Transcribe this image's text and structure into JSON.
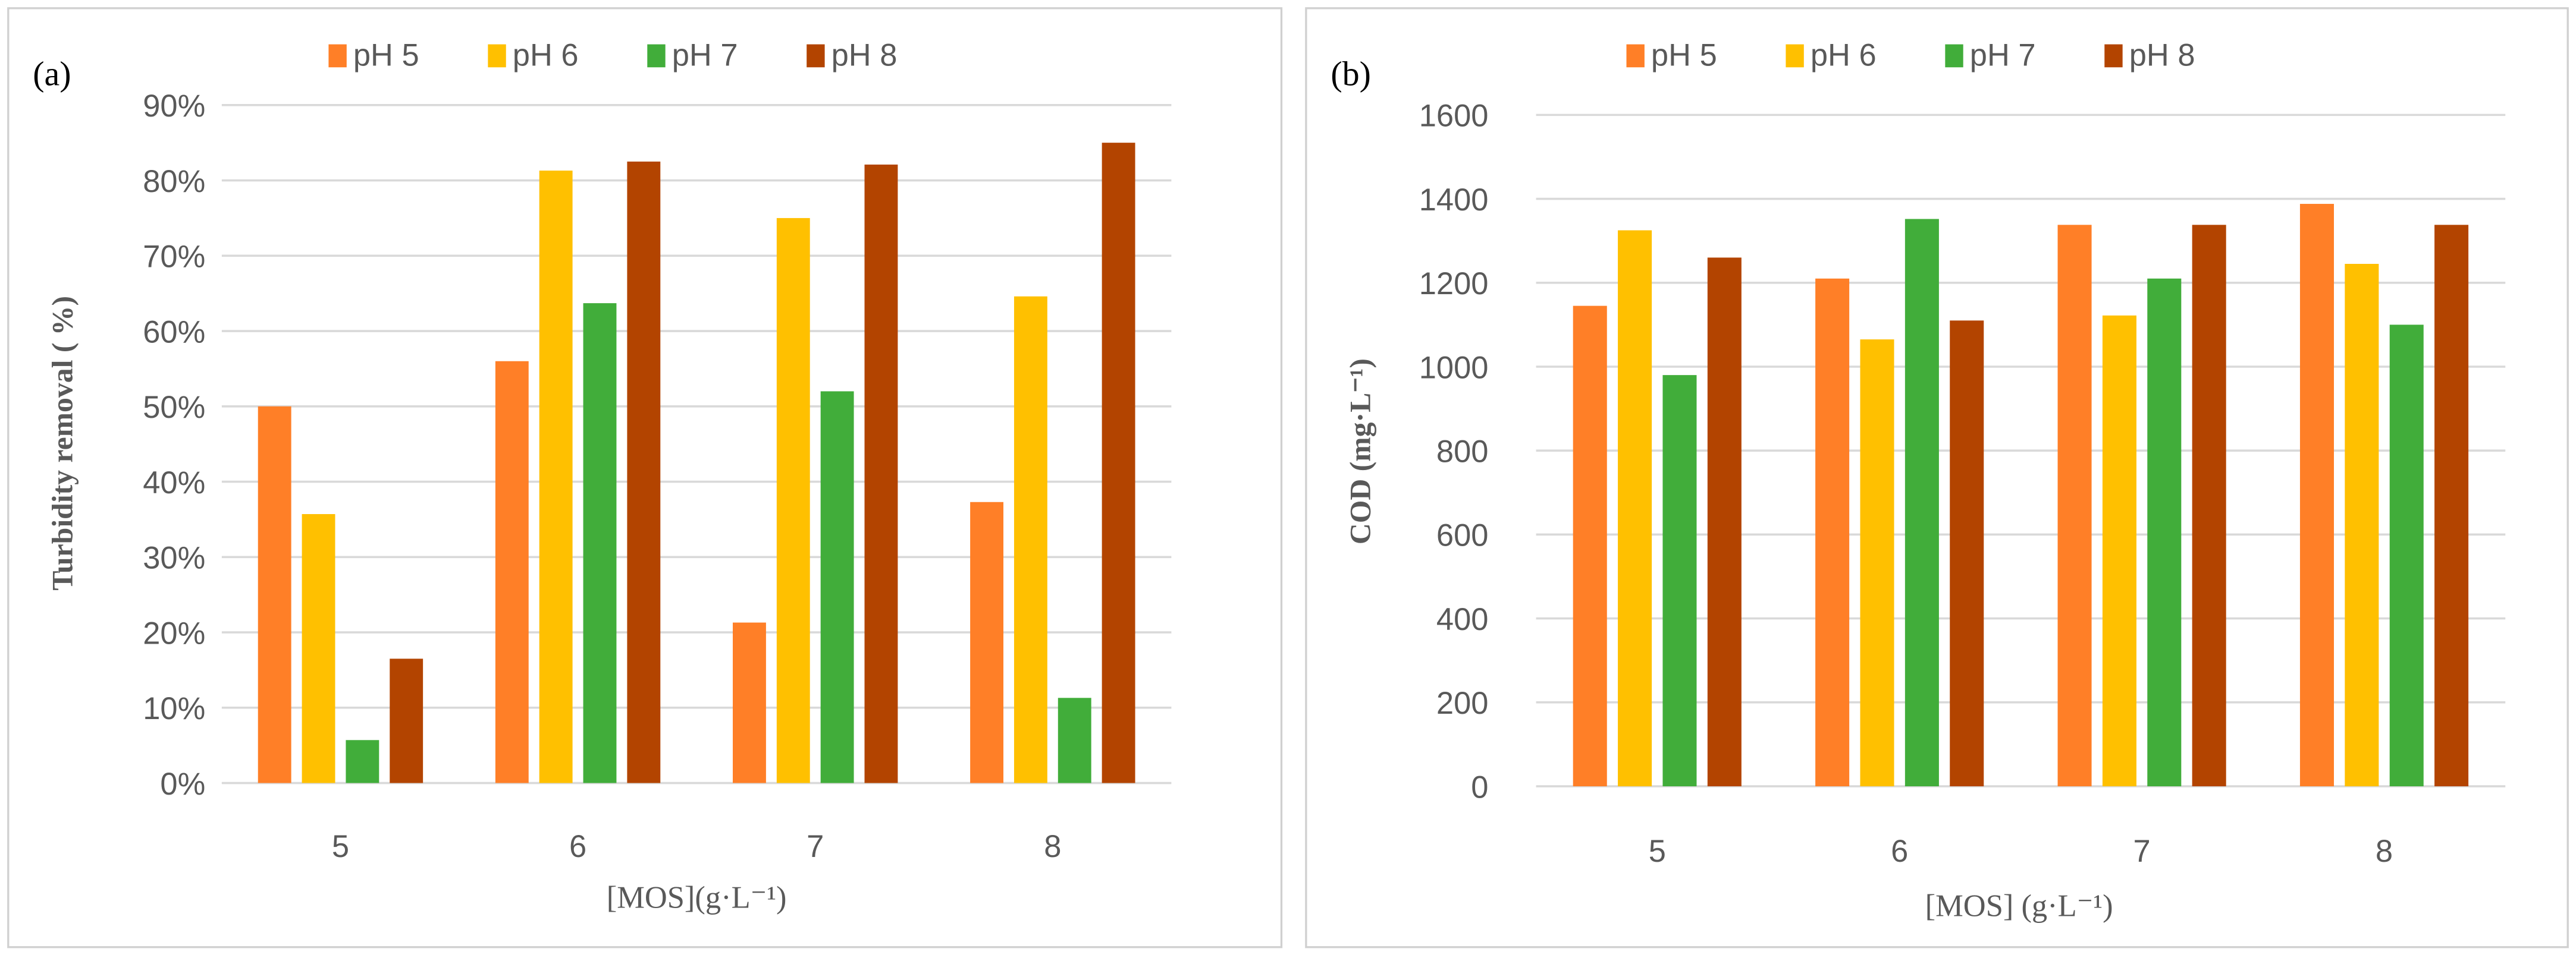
{
  "chart_data": [
    {
      "type": "bar",
      "panel_label": "(a)",
      "title": "",
      "xlabel": "[MOS](g·L⁻¹)",
      "ylabel": "Turbidity removal ( %)",
      "ylim": [
        0,
        90
      ],
      "yticks": [
        "0%",
        "10%",
        "20%",
        "30%",
        "40%",
        "50%",
        "60%",
        "70%",
        "80%",
        "90%"
      ],
      "ytick_values": [
        0,
        10,
        20,
        30,
        40,
        50,
        60,
        70,
        80,
        90
      ],
      "categories": [
        "5",
        "6",
        "7",
        "8"
      ],
      "legend_position": "top",
      "grid": true,
      "series": [
        {
          "name": "pH 5",
          "color": "#FF7F27",
          "values": [
            50.0,
            56.0,
            21.3,
            37.3
          ]
        },
        {
          "name": "pH 6",
          "color": "#FFC000",
          "values": [
            35.7,
            81.3,
            75.0,
            64.6
          ]
        },
        {
          "name": "pH 7",
          "color": "#41AD3A",
          "values": [
            5.7,
            63.7,
            52.0,
            11.3
          ]
        },
        {
          "name": "pH 8",
          "color": "#B34400",
          "values": [
            16.5,
            82.5,
            82.1,
            85.0
          ]
        }
      ]
    },
    {
      "type": "bar",
      "panel_label": "(b)",
      "title": "",
      "xlabel": "[MOS] (g·L⁻¹)",
      "ylabel": "COD (mg·L⁻¹)",
      "ylim": [
        0,
        1600
      ],
      "yticks": [
        "0",
        "200",
        "400",
        "600",
        "800",
        "1000",
        "1200",
        "1400",
        "1600"
      ],
      "ytick_values": [
        0,
        200,
        400,
        600,
        800,
        1000,
        1200,
        1400,
        1600
      ],
      "categories": [
        "5",
        "6",
        "7",
        "8"
      ],
      "legend_position": "top",
      "grid": true,
      "series": [
        {
          "name": "pH 5",
          "color": "#FF7F27",
          "values": [
            1145,
            1210,
            1338,
            1388
          ]
        },
        {
          "name": "pH 6",
          "color": "#FFC000",
          "values": [
            1325,
            1065,
            1122,
            1245
          ]
        },
        {
          "name": "pH 7",
          "color": "#41AD3A",
          "values": [
            980,
            1352,
            1210,
            1100
          ]
        },
        {
          "name": "pH 8",
          "color": "#B34400",
          "values": [
            1260,
            1110,
            1338,
            1338
          ]
        }
      ]
    }
  ]
}
